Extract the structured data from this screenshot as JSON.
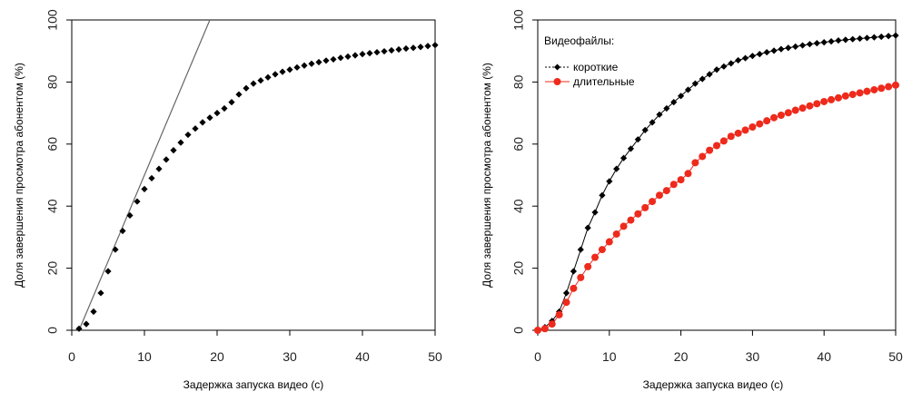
{
  "chart_data": [
    {
      "type": "scatter",
      "title": "",
      "xlabel": "Задержка запуска видео (с)",
      "ylabel": "Доля завершения просмотра абонентом (%)",
      "xlim": [
        0,
        50
      ],
      "ylim": [
        0,
        100
      ],
      "x_ticks": [
        "0",
        "10",
        "20",
        "30",
        "40",
        "50"
      ],
      "y_ticks": [
        "0",
        "20",
        "40",
        "60",
        "80",
        "100"
      ],
      "grid": false,
      "legend": null,
      "series": [
        {
          "marker": "diamond",
          "color": "#000000",
          "x": [
            1,
            2,
            3,
            4,
            5,
            6,
            7,
            8,
            9,
            10,
            11,
            12,
            13,
            14,
            15,
            16,
            17,
            18,
            19,
            20,
            21,
            22,
            23,
            24,
            25,
            26,
            27,
            28,
            29,
            30,
            31,
            32,
            33,
            34,
            35,
            36,
            37,
            38,
            39,
            40,
            41,
            42,
            43,
            44,
            45,
            46,
            47,
            48,
            49,
            50
          ],
          "values": [
            0.5,
            2,
            6,
            12,
            19,
            26,
            32,
            37,
            41.5,
            45.5,
            49,
            52,
            55,
            58,
            60.5,
            63,
            65,
            67,
            68.5,
            70,
            71.5,
            73.5,
            76,
            78,
            79.5,
            80.5,
            81.5,
            82.5,
            83.3,
            84,
            84.7,
            85.3,
            85.9,
            86.4,
            86.9,
            87.3,
            87.8,
            88.2,
            88.6,
            89,
            89.3,
            89.6,
            89.9,
            90.2,
            90.5,
            90.8,
            91,
            91.3,
            91.6,
            91.9
          ]
        }
      ],
      "reference_line": {
        "x": [
          1,
          19
        ],
        "y": [
          0,
          100
        ],
        "color": "#666666"
      }
    },
    {
      "type": "scatter",
      "title": "",
      "xlabel": "Задержка запуска видео (с)",
      "ylabel": "Доля завершения просмотра абонентом (%)",
      "xlim": [
        0,
        50
      ],
      "ylim": [
        0,
        100
      ],
      "x_ticks": [
        "0",
        "10",
        "20",
        "30",
        "40",
        "50"
      ],
      "y_ticks": [
        "0",
        "20",
        "40",
        "60",
        "80",
        "100"
      ],
      "grid": false,
      "legend_title": "Видеофайлы:",
      "legend_position": "top-left",
      "series": [
        {
          "name": "короткие",
          "marker": "diamond",
          "color": "#000000",
          "x": [
            0,
            1,
            2,
            3,
            4,
            5,
            6,
            7,
            8,
            9,
            10,
            11,
            12,
            13,
            14,
            15,
            16,
            17,
            18,
            19,
            20,
            21,
            22,
            23,
            24,
            25,
            26,
            27,
            28,
            29,
            30,
            31,
            32,
            33,
            34,
            35,
            36,
            37,
            38,
            39,
            40,
            41,
            42,
            43,
            44,
            45,
            46,
            47,
            48,
            49,
            50
          ],
          "values": [
            0,
            1,
            3,
            6,
            12,
            19,
            26,
            33,
            38,
            43.5,
            48,
            52,
            55.5,
            58.5,
            61.5,
            64.5,
            67,
            69.5,
            71.5,
            73.5,
            75.5,
            77.5,
            79.5,
            81,
            82.5,
            84,
            85,
            86,
            87,
            87.7,
            88.4,
            89,
            89.6,
            90.1,
            90.6,
            91,
            91.4,
            91.8,
            92.2,
            92.5,
            92.8,
            93.1,
            93.4,
            93.6,
            93.8,
            94,
            94.2,
            94.4,
            94.6,
            94.8,
            95
          ]
        },
        {
          "name": "длительные",
          "marker": "circle",
          "color": "#ee2a1c",
          "x": [
            0,
            1,
            2,
            3,
            4,
            5,
            6,
            7,
            8,
            9,
            10,
            11,
            12,
            13,
            14,
            15,
            16,
            17,
            18,
            19,
            20,
            21,
            22,
            23,
            24,
            25,
            26,
            27,
            28,
            29,
            30,
            31,
            32,
            33,
            34,
            35,
            36,
            37,
            38,
            39,
            40,
            41,
            42,
            43,
            44,
            45,
            46,
            47,
            48,
            49,
            50
          ],
          "values": [
            0,
            0.5,
            2,
            5,
            9,
            13.5,
            17,
            20.5,
            23.5,
            26,
            28.5,
            31,
            33.5,
            35.5,
            37.5,
            39.5,
            41.5,
            43.5,
            45,
            47,
            48.5,
            50.5,
            54,
            56,
            58,
            59.5,
            61,
            62.5,
            63.5,
            64.5,
            65.5,
            66.5,
            67.5,
            68.5,
            69.3,
            70.1,
            70.9,
            71.6,
            72.3,
            73,
            73.7,
            74.3,
            74.9,
            75.5,
            76,
            76.5,
            77,
            77.5,
            78,
            78.5,
            79
          ]
        }
      ]
    }
  ]
}
